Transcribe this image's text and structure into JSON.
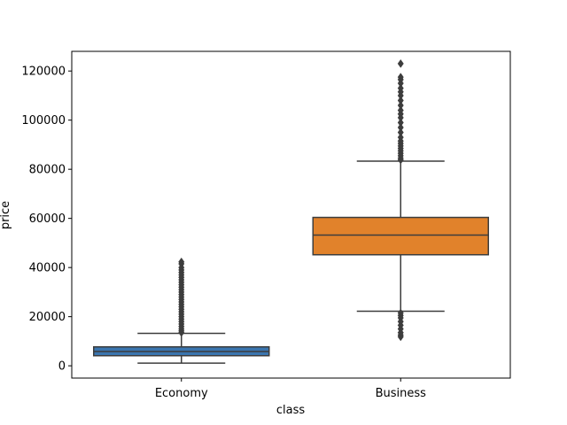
{
  "chart_data": {
    "type": "box",
    "xlabel": "class",
    "ylabel": "price",
    "ylim": [
      -5000,
      128000
    ],
    "yticks": [
      0,
      20000,
      40000,
      60000,
      80000,
      100000,
      120000
    ],
    "categories": [
      "Economy",
      "Business"
    ],
    "boxes": [
      {
        "category": "Economy",
        "color": "#3a75af",
        "whisker_low": 1100,
        "q1": 4100,
        "median": 5800,
        "q3": 7700,
        "whisker_high": 13200,
        "outliers": [
          13500,
          14200,
          15000,
          16000,
          17000,
          18000,
          19000,
          20000,
          21000,
          22000,
          23000,
          24000,
          25000,
          26000,
          27000,
          28000,
          29000,
          30000,
          31000,
          32000,
          33000,
          34000,
          35000,
          36000,
          37000,
          38000,
          39000,
          40000,
          41500,
          42300
        ]
      },
      {
        "category": "Business",
        "color": "#e1822b",
        "whisker_low": 22200,
        "q1": 45200,
        "median": 53200,
        "q3": 60400,
        "whisker_high": 83300,
        "outliers": [
          11800,
          12500,
          13500,
          15000,
          16500,
          18000,
          19500,
          20500,
          21500,
          83800,
          84500,
          85500,
          86500,
          87500,
          88500,
          89500,
          90500,
          91500,
          93000,
          95000,
          97000,
          99000,
          101000,
          102500,
          104000,
          106000,
          108000,
          110000,
          111500,
          113000,
          115000,
          116500,
          117500,
          123000
        ]
      }
    ]
  }
}
